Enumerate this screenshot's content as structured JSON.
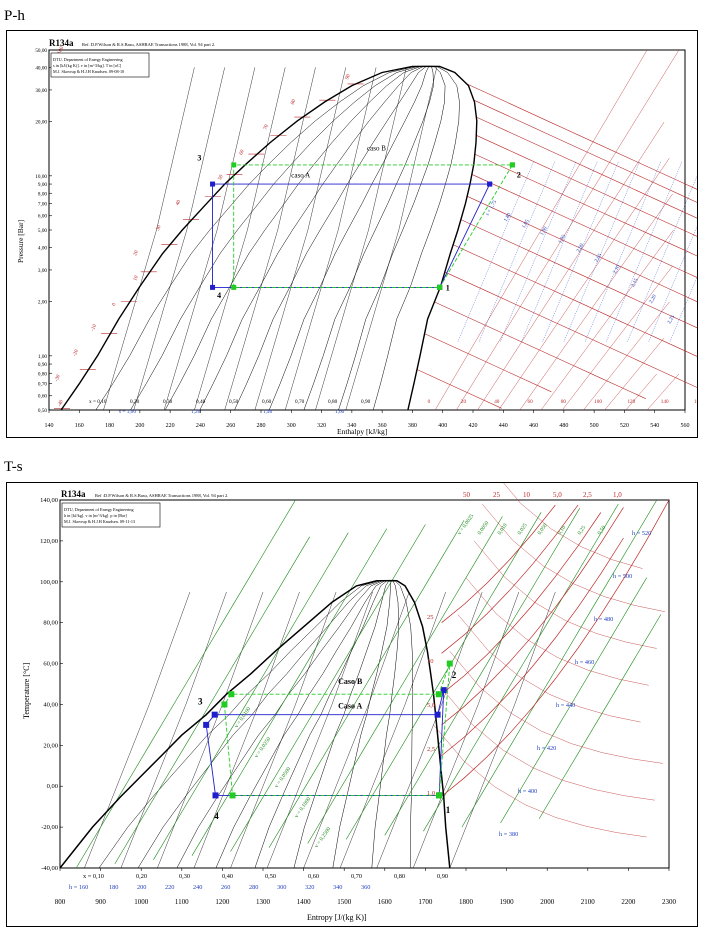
{
  "sections": {
    "ph_label": "P-h",
    "ts_label": "T-s"
  },
  "colors": {
    "saturation": "#000000",
    "isotherm": "#bb2a2a",
    "isentrope": "#1f3fbf",
    "isochore": "#1a8a1a",
    "caso_a": "#1f1fcc",
    "caso_b": "#22cc22"
  },
  "chart_data": [
    {
      "id": "ph",
      "type": "line",
      "title": "R134a",
      "subtitle": "Ref. D.P.Wilson & R.S.Basu, ASHRAE Transactions 1988, Vol. 94 part 2.",
      "header_box": [
        "DTU, Department of Energy Engineering",
        "s in [kJ/(kg K)]. v in [m^3/kg]. T in [oC]",
        "M.J. Skovrup & H.J.H Knudsen. 09-08-10"
      ],
      "xlabel": "Enthalpy [kJ/kg]",
      "ylabel": "Pressure [Bar]",
      "xlim": [
        140,
        560
      ],
      "ylim": [
        0.5,
        50
      ],
      "y_scale": "log",
      "x_ticks": [
        "140",
        "160",
        "180",
        "200",
        "220",
        "240",
        "260",
        "280",
        "300",
        "320",
        "340",
        "360",
        "380",
        "400",
        "420",
        "440",
        "460",
        "480",
        "500",
        "520",
        "540",
        "560"
      ],
      "y_ticks": [
        "50,00",
        "40,00",
        "30,00",
        "20,00",
        "10,00",
        "9,00",
        "8,00",
        "7,00",
        "6,00",
        "5,00",
        "4,00",
        "3,00",
        "2,00",
        "1,00",
        "0,90",
        "0,80",
        "0,70",
        "0,60",
        "0,50"
      ],
      "quality_labels": [
        "x = 0,10",
        "0,20",
        "0,30",
        "0,40",
        "0,50",
        "0,60",
        "0,70",
        "0,80",
        "0,90"
      ],
      "entropy_labels": [
        "s = 1,00",
        "1,20",
        "1,40",
        "1,60"
      ],
      "isotherm_labels": [
        "-40",
        "-30",
        "-20",
        "-10",
        "0",
        "10",
        "20",
        "30",
        "40",
        "50",
        "60",
        "70",
        "80",
        "90",
        "100"
      ],
      "isentrope_labels": [
        "s = 1,75",
        "1,80",
        "1,85",
        "1,90",
        "1,95",
        "2,00",
        "2,05",
        "2,10",
        "2,15",
        "2,20",
        "2,25"
      ],
      "vapour_isotherm_labels": [
        "0",
        "20",
        "40",
        "60",
        "80",
        "100",
        "120",
        "140",
        "160"
      ],
      "annotations": [
        "caso A",
        "caso B",
        "1",
        "2",
        "3",
        "4"
      ],
      "series": [
        {
          "name": "caso A",
          "color": "#1f1fcc",
          "x": [
            398,
            431,
            431,
            248,
            248,
            398
          ],
          "y": [
            2.4,
            9.0,
            9.0,
            9.0,
            2.4,
            2.4
          ]
        },
        {
          "name": "caso B",
          "color": "#22cc22",
          "x": [
            398,
            446,
            446,
            262,
            262,
            398
          ],
          "y": [
            2.4,
            11.5,
            11.5,
            11.5,
            2.4,
            2.4
          ]
        }
      ]
    },
    {
      "id": "ts",
      "type": "line",
      "title": "R134a",
      "subtitle": "Ref :D.P.Wilson & R.S.Basu, ASHRAE Transactions 1988, Vol. 94 part 2.",
      "header_box": [
        "DTU, Department of Energy Engineering",
        "h in [kJ/kg]. v in [m^3/kg]. p in [Bar]",
        "M.J. Skovrup & H.J.H Knudsen. 09-11-13"
      ],
      "xlabel": "Entropy [J/(kg K)]",
      "ylabel": "Temperature [°C]",
      "xlim": [
        800,
        2300
      ],
      "ylim": [
        -40,
        140
      ],
      "x_ticks": [
        "800",
        "900",
        "1000",
        "1100",
        "1200",
        "1300",
        "1400",
        "1500",
        "1600",
        "1700",
        "1800",
        "1900",
        "2000",
        "2100",
        "2200",
        "2300"
      ],
      "y_ticks": [
        "140,00",
        "120,00",
        "100,00",
        "80,00",
        "60,00",
        "40,00",
        "20,00",
        "0,00",
        "-20,00",
        "-40,00"
      ],
      "quality_labels": [
        "x = 0,10",
        "0,20",
        "0,30",
        "0,40",
        "0,50",
        "0,60",
        "0,70",
        "0,80",
        "0,90"
      ],
      "enthalpy_labels": [
        "h = 160",
        "180",
        "200",
        "220",
        "240",
        "260",
        "280",
        "300",
        "320",
        "340",
        "360"
      ],
      "isobar_labels_top": [
        "50",
        "25",
        "10",
        "5,0",
        "2,5",
        "1,0"
      ],
      "enthalpy_iso_labels": [
        "h = 520",
        "h = 500",
        "h = 480",
        "h = 460",
        "h = 440",
        "h = 420",
        "h = 400",
        "h = 380"
      ],
      "isochore_labels": [
        "v = 0,0025",
        "0,0050",
        "0,010",
        "0,025",
        "0,050",
        "0,10",
        "0,25",
        "0,50",
        "v = 0,0100",
        "v = 0,0250",
        "v = 0,0500",
        "v = 0,1000",
        "v = 0,2500"
      ],
      "isobar_labels_inner": [
        "25",
        "10",
        "5,0",
        "2,5",
        "1,0"
      ],
      "annotations": [
        "Caso B",
        "Caso A",
        "1",
        "2",
        "3",
        "4"
      ],
      "series": [
        {
          "name": "Caso A",
          "color": "#1f1fcc",
          "x": [
            1734,
            1745,
            1730,
            1181,
            1160,
            1183,
            1734
          ],
          "y": [
            -4.5,
            47,
            35,
            35,
            30,
            -4.5,
            -4.5
          ]
        },
        {
          "name": "Caso B",
          "color": "#22cc22",
          "x": [
            1734,
            1760,
            1733,
            1222,
            1205,
            1225,
            1734
          ],
          "y": [
            -4.5,
            60,
            45,
            45,
            40,
            -4.5,
            -4.5
          ]
        }
      ]
    }
  ]
}
